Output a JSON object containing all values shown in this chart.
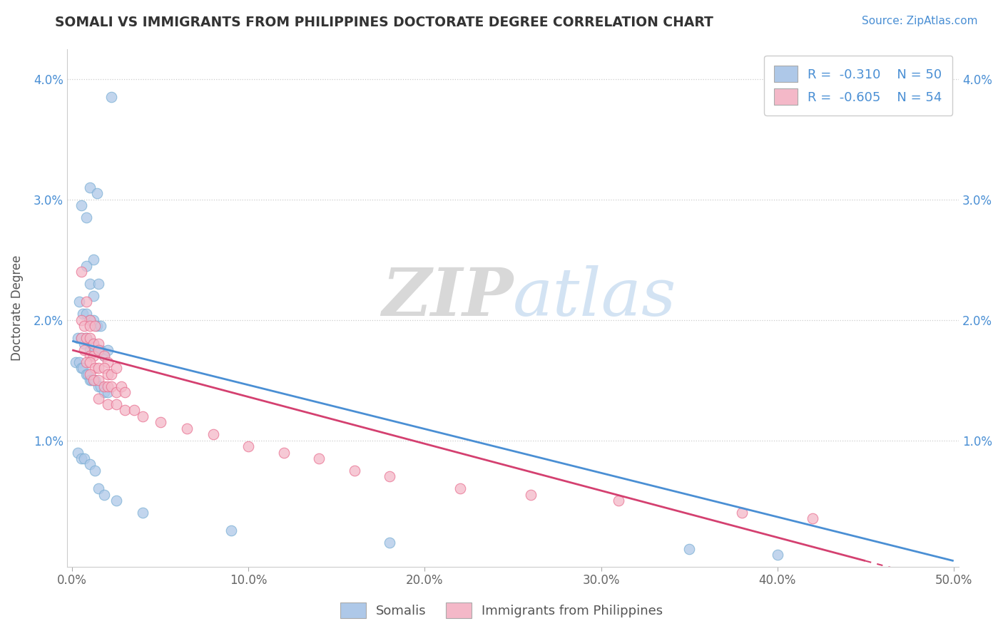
{
  "title": "SOMALI VS IMMIGRANTS FROM PHILIPPINES DOCTORATE DEGREE CORRELATION CHART",
  "source_text": "Source: ZipAtlas.com",
  "ylabel": "Doctorate Degree",
  "xlim": [
    -0.003,
    0.503
  ],
  "ylim": [
    -0.0005,
    0.0425
  ],
  "xtick_labels": [
    "0.0%",
    "10.0%",
    "20.0%",
    "30.0%",
    "40.0%",
    "50.0%"
  ],
  "xtick_vals": [
    0.0,
    0.1,
    0.2,
    0.3,
    0.4,
    0.5
  ],
  "ytick_labels": [
    "1.0%",
    "2.0%",
    "3.0%",
    "4.0%"
  ],
  "ytick_vals": [
    0.01,
    0.02,
    0.03,
    0.04
  ],
  "somali_color": "#aec8e8",
  "somali_edge": "#7aafd4",
  "philippines_color": "#f4b8c8",
  "philippines_edge": "#e87090",
  "trend_somali_color": "#4a8fd4",
  "trend_phil_color": "#d44070",
  "background_color": "#ffffff",
  "grid_color": "#cccccc",
  "watermark_zip": "ZIP",
  "watermark_atlas": "atlas",
  "somali_x": [
    0.022,
    0.01,
    0.014,
    0.005,
    0.008,
    0.012,
    0.008,
    0.01,
    0.012,
    0.015,
    0.004,
    0.006,
    0.008,
    0.01,
    0.012,
    0.014,
    0.016,
    0.003,
    0.005,
    0.007,
    0.008,
    0.01,
    0.012,
    0.013,
    0.015,
    0.016,
    0.018,
    0.02,
    0.002,
    0.004,
    0.005,
    0.006,
    0.008,
    0.009,
    0.01,
    0.011,
    0.012,
    0.013,
    0.015,
    0.016,
    0.018,
    0.02,
    0.003,
    0.005,
    0.007,
    0.01,
    0.013,
    0.015,
    0.018,
    0.025,
    0.04,
    0.09,
    0.18,
    0.35,
    0.4
  ],
  "somali_y": [
    0.0385,
    0.031,
    0.0305,
    0.0295,
    0.0285,
    0.025,
    0.0245,
    0.023,
    0.022,
    0.023,
    0.0215,
    0.0205,
    0.0205,
    0.02,
    0.02,
    0.0195,
    0.0195,
    0.0185,
    0.0185,
    0.018,
    0.0185,
    0.0175,
    0.018,
    0.0175,
    0.0175,
    0.0175,
    0.017,
    0.0175,
    0.0165,
    0.0165,
    0.016,
    0.016,
    0.0155,
    0.0155,
    0.015,
    0.015,
    0.015,
    0.015,
    0.0145,
    0.0145,
    0.014,
    0.014,
    0.009,
    0.0085,
    0.0085,
    0.008,
    0.0075,
    0.006,
    0.0055,
    0.005,
    0.004,
    0.0025,
    0.0015,
    0.001,
    0.0005
  ],
  "phil_x": [
    0.005,
    0.008,
    0.01,
    0.005,
    0.007,
    0.01,
    0.013,
    0.005,
    0.008,
    0.01,
    0.012,
    0.015,
    0.007,
    0.01,
    0.012,
    0.015,
    0.018,
    0.02,
    0.008,
    0.01,
    0.013,
    0.015,
    0.018,
    0.02,
    0.022,
    0.025,
    0.01,
    0.012,
    0.015,
    0.018,
    0.02,
    0.022,
    0.025,
    0.028,
    0.03,
    0.015,
    0.02,
    0.025,
    0.03,
    0.035,
    0.04,
    0.05,
    0.065,
    0.08,
    0.1,
    0.12,
    0.14,
    0.16,
    0.18,
    0.22,
    0.26,
    0.31,
    0.38,
    0.42
  ],
  "phil_y": [
    0.024,
    0.0215,
    0.02,
    0.02,
    0.0195,
    0.0195,
    0.0195,
    0.0185,
    0.0185,
    0.0185,
    0.018,
    0.018,
    0.0175,
    0.017,
    0.017,
    0.0175,
    0.017,
    0.0165,
    0.0165,
    0.0165,
    0.016,
    0.016,
    0.016,
    0.0155,
    0.0155,
    0.016,
    0.0155,
    0.015,
    0.015,
    0.0145,
    0.0145,
    0.0145,
    0.014,
    0.0145,
    0.014,
    0.0135,
    0.013,
    0.013,
    0.0125,
    0.0125,
    0.012,
    0.0115,
    0.011,
    0.0105,
    0.0095,
    0.009,
    0.0085,
    0.0075,
    0.007,
    0.006,
    0.0055,
    0.005,
    0.004,
    0.0035
  ],
  "trend_s_x0": 0.0,
  "trend_s_y0": 0.01825,
  "trend_s_x1": 0.5,
  "trend_s_y1": 0.0,
  "trend_p_x0": 0.0,
  "trend_p_y0": 0.0175,
  "trend_p_x1": 0.45,
  "trend_p_y1": 0.0
}
